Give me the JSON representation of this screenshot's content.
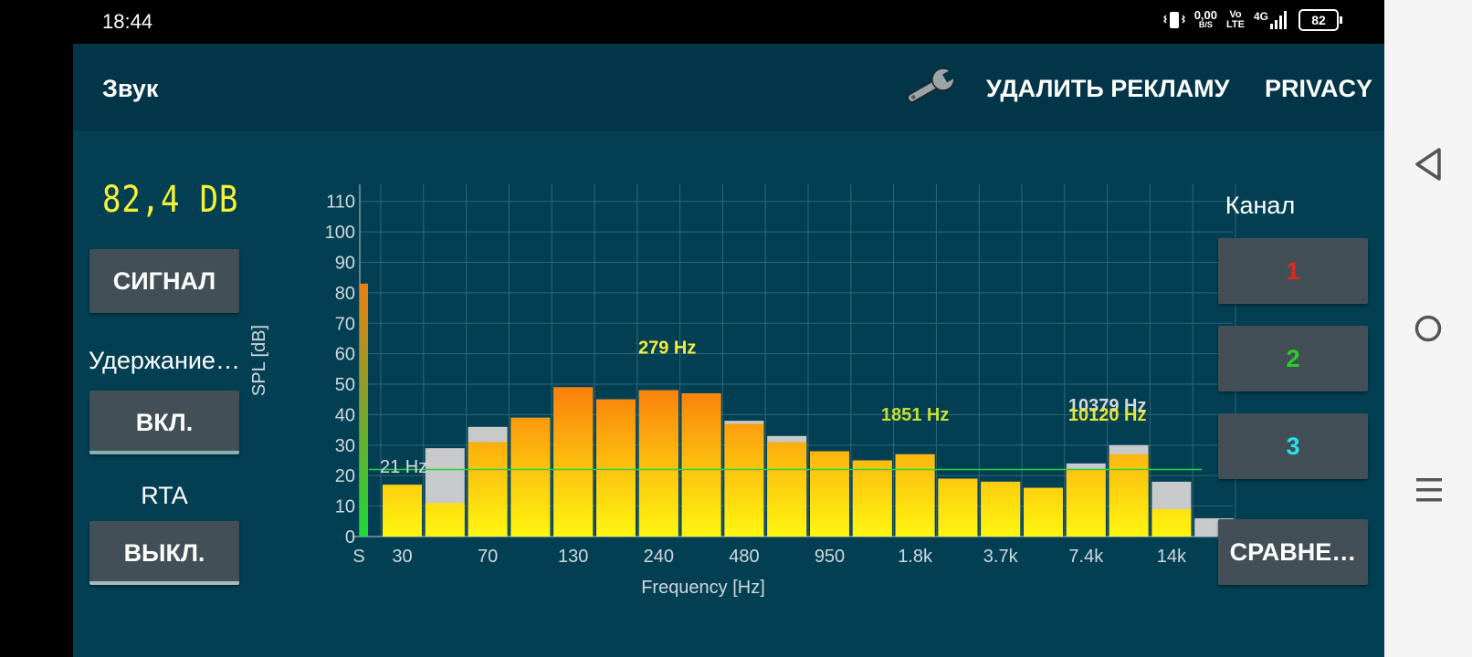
{
  "status": {
    "time": "18:44",
    "net_speed_value": "0,00",
    "net_speed_unit": "B/S",
    "volte_top": "Vo",
    "volte_bottom": "LTE",
    "network": "4G",
    "battery": "82"
  },
  "toolbar": {
    "title": "Звук",
    "remove_ads": "УДАЛИТЬ РЕКЛАМУ",
    "privacy": "PRIVACY"
  },
  "left_panel": {
    "level": "82,4 DB",
    "signal_button": "СИГНАЛ",
    "hold_label": "Удержание…",
    "hold_button": "ВКЛ.",
    "rta_label": "RTA",
    "rta_button": "ВЫКЛ."
  },
  "right_panel": {
    "channel_label": "Канал",
    "channels": [
      "1",
      "2",
      "3"
    ],
    "channel_colors": [
      "#e02a1f",
      "#27d023",
      "#24e4f0"
    ],
    "compare_button": "СРАВНЕ…"
  },
  "chart_data": {
    "type": "bar",
    "xlabel": "Frequency [Hz]",
    "ylabel": "SPL [dB]",
    "ylim": [
      0,
      115
    ],
    "yticks": [
      0,
      10,
      20,
      30,
      40,
      50,
      60,
      70,
      80,
      90,
      100,
      110
    ],
    "xtick_labels": [
      "S",
      "30",
      "70",
      "130",
      "240",
      "480",
      "950",
      "1.8k",
      "3.7k",
      "7.4k",
      "14k"
    ],
    "grid": true,
    "signal_level": 83,
    "threshold": 22,
    "series": [
      {
        "values": [
          17,
          11,
          31,
          39,
          49,
          45,
          48,
          47,
          37,
          31,
          28,
          25,
          27,
          19,
          18,
          16,
          22,
          27,
          9,
          0
        ]
      },
      {
        "values": [
          17,
          29,
          36,
          39,
          49,
          45,
          48,
          47,
          38,
          33,
          28,
          25,
          27,
          19,
          18,
          16,
          24,
          30,
          18,
          6
        ]
      }
    ],
    "annotations": [
      {
        "text": "21 Hz",
        "x": 0,
        "y": 21
      },
      {
        "text": "279 Hz",
        "x": 6.2,
        "y": 60
      },
      {
        "text": "1851 Hz",
        "x": 12,
        "y": 38
      },
      {
        "text": "10379 Hz",
        "x": 16.5,
        "y": 41
      },
      {
        "text": "10120 Hz",
        "x": 16.5,
        "y": 38
      }
    ]
  }
}
